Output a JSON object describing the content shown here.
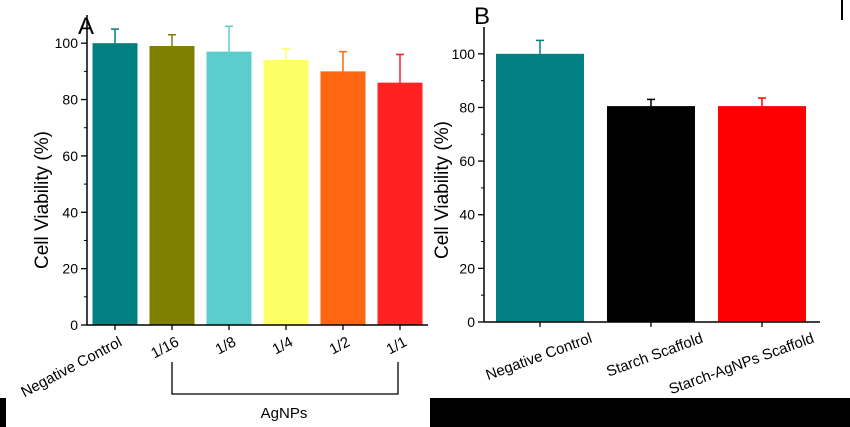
{
  "chart_data": [
    {
      "type": "bar",
      "panel_label": "A",
      "ylabel": "Cell Viability (%)",
      "ylim": [
        0,
        110
      ],
      "yticks": [
        0,
        20,
        40,
        60,
        80,
        100
      ],
      "categories": [
        "Negative Control",
        "1/16",
        "1/8",
        "1/4",
        "1/2",
        "1/1"
      ],
      "values": [
        100,
        99,
        97,
        94,
        90,
        86
      ],
      "errors": [
        5,
        4,
        9,
        4,
        7,
        10
      ],
      "colors": [
        "#008080",
        "#808000",
        "#5ccdcd",
        "#ffff66",
        "#ff6611",
        "#ff2222"
      ],
      "group_bracket": {
        "label": "AgNPs",
        "from": 1,
        "to": 5
      }
    },
    {
      "type": "bar",
      "panel_label": "B",
      "ylabel": "Cell Viability (%)",
      "ylim": [
        0,
        110
      ],
      "yticks": [
        0,
        20,
        40,
        60,
        80,
        100
      ],
      "categories": [
        "Negative Control",
        "Starch Scaffold",
        "Starch-AgNPs Scaffold"
      ],
      "values": [
        100,
        80.5,
        80.5
      ],
      "errors": [
        5,
        2.5,
        3
      ],
      "colors": [
        "#008080",
        "#000000",
        "#ff0000"
      ]
    }
  ]
}
